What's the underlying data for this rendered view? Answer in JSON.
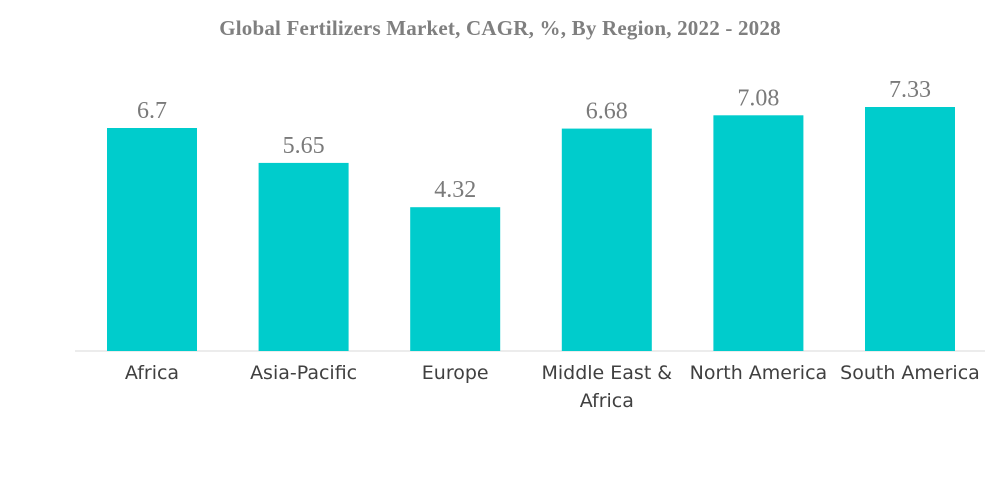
{
  "chart_data": {
    "type": "bar",
    "title": "Global Fertilizers Market, CAGR, %, By Region, 2022 - 2028",
    "categories": [
      "Africa",
      "Asia-Pacific",
      "Europe",
      "Middle East & Africa",
      "North America",
      "South America"
    ],
    "values": [
      6.7,
      5.65,
      4.32,
      6.68,
      7.08,
      7.33
    ],
    "value_labels": [
      "6.7",
      "5.65",
      "4.32",
      "6.68",
      "7.08",
      "7.33"
    ],
    "xlabel": "",
    "ylabel": "",
    "ylim": [
      0,
      7.33
    ],
    "grid": false,
    "legend": "none",
    "bar_color": "#00cccc",
    "value_label_color": "#7a7a7a",
    "category_label_color": "#404040",
    "title_color": "#7f7f7f"
  }
}
